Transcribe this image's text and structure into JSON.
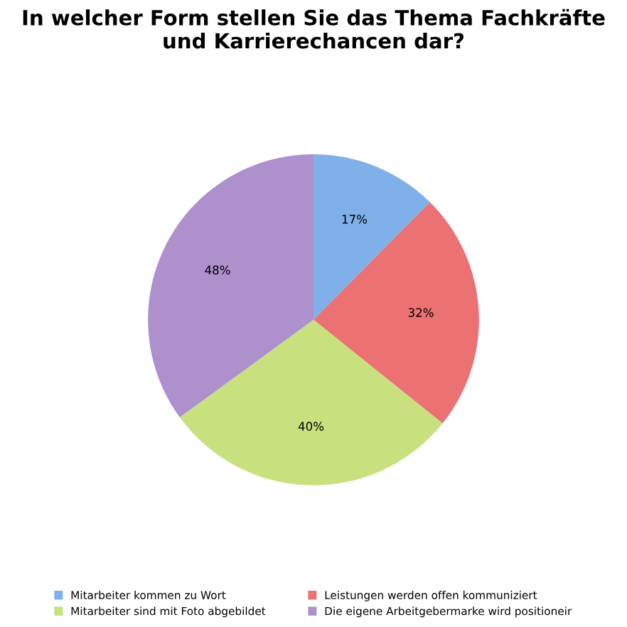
{
  "chart_data": {
    "type": "pie",
    "title": "In welcher Form stellen Sie das Thema Fachkräfte\nund Karrierechancen dar?",
    "categories": [
      "Mitarbeiter kommen zu Wort",
      "Leistungen werden offen kommuniziert",
      "Mitarbeiter sind mit Foto abgebildet",
      "Die eigene Arbeitgebermarke wird positioneir"
    ],
    "values": [
      17,
      32,
      40,
      48
    ],
    "value_labels": [
      "17%",
      "32%",
      "40%",
      "48%"
    ],
    "colors": [
      "#7fb0ea",
      "#ec7173",
      "#c8e07e",
      "#ad90cc"
    ],
    "legend": "bottom"
  }
}
